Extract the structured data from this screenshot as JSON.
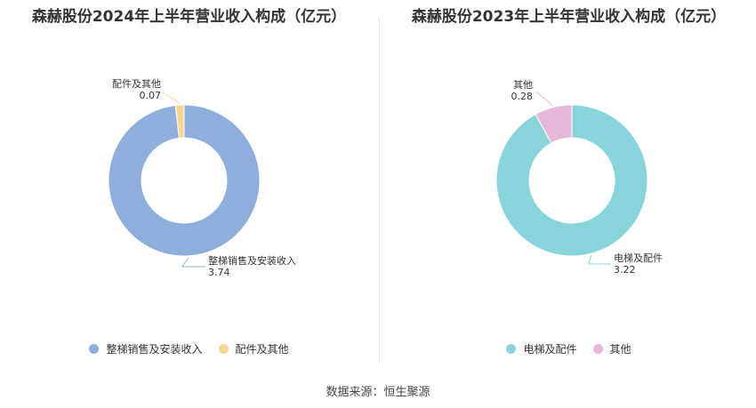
{
  "chart_data": [
    {
      "type": "pie",
      "title": "森赫股份2024年上半年营业收入构成（亿元）",
      "series": [
        {
          "name": "整梯销售及安装收入",
          "value": 3.74,
          "value_label": "3.74",
          "color": "#8eaedb"
        },
        {
          "name": "配件及其他",
          "value": 0.07,
          "value_label": "0.07",
          "color": "#f9d592"
        }
      ]
    },
    {
      "type": "pie",
      "title": "森赫股份2023年上半年营业收入构成（亿元）",
      "series": [
        {
          "name": "电梯及配件",
          "value": 3.22,
          "value_label": "3.22",
          "color": "#87d5da"
        },
        {
          "name": "其他",
          "value": 0.28,
          "value_label": "0.28",
          "color": "#e6b7d8"
        }
      ]
    }
  ],
  "footer": {
    "source": "数据来源：恒生聚源"
  }
}
